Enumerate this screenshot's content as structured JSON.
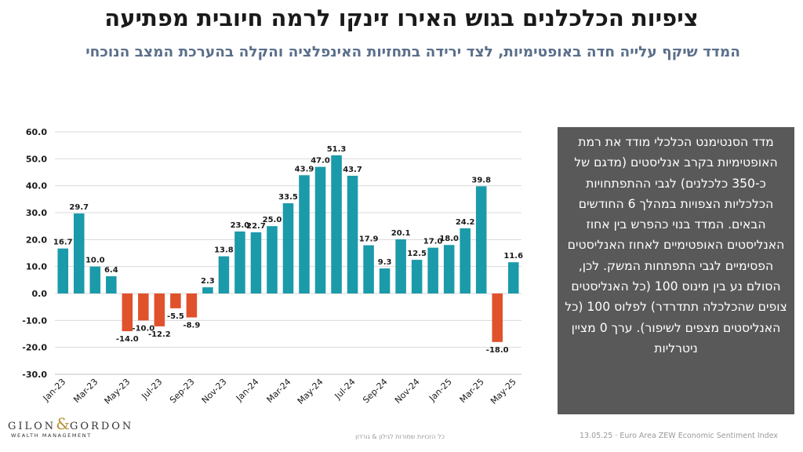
{
  "title": "ציפיות הכלכלנים בגוש האירו זינקו לרמה חיובית מפתיעה",
  "subtitle": "המדד שיקף עלייה חדה באופטימיות, לצד ירידה בתחזיות האינפלציה והקלה בהערכת המצב הנוכחי",
  "panel_text": "מדד הסנטימנט הכלכלי מודד את רמת האופטימיות בקרב אנליסטים (מדגם של כ-350 כלכלנים) לגבי ההתפתחויות הכלכליות הצפויות במהלך 6 החודשים הבאים. המדד בנוי כהפרש בין אחוז האנליסטים האופטימיים לאחוז האנליסטים הפסימיים לגבי התפתחות המשק. לכן, הסולם נע בין מינוס 100 (כל האנליסטים צופים שהכלכלה תתדרדר) לפלוס 100 (כל האנליסטים מצפים לשיפור). ערך 0 מציין ניטרליות",
  "logo": {
    "name_left": "GILON",
    "ampersand": "&",
    "name_right": "GORDON",
    "sub": "WEALTH MANAGEMENT"
  },
  "footer": {
    "rights": "כל הזכויות שמורות לגילון & גורדון",
    "source": "13.05.25 · Euro Area ZEW Economic Sentiment Index"
  },
  "colors": {
    "positive": "#1b9aaa",
    "negative": "#e0522c",
    "grid": "#d9d9d9",
    "text": "#1a1a1a"
  },
  "chart_data": {
    "type": "bar",
    "categories": [
      "Jan-23",
      "Feb-23",
      "Mar-23",
      "Apr-23",
      "May-23",
      "Jun-23",
      "Jul-23",
      "Aug-23",
      "Sep-23",
      "Oct-23",
      "Nov-23",
      "Dec-23",
      "Jan-24",
      "Feb-24",
      "Mar-24",
      "Apr-24",
      "May-24",
      "Jun-24",
      "Jul-24",
      "Aug-24",
      "Sep-24",
      "Oct-24",
      "Nov-24",
      "Dec-24",
      "Jan-25",
      "Feb-25",
      "Mar-25",
      "Apr-25",
      "May-25"
    ],
    "tick_labels": [
      "Jan-23",
      "Mar-23",
      "May-23",
      "Jul-23",
      "Sep-23",
      "Nov-23",
      "Jan-24",
      "Mar-24",
      "May-24",
      "Jul-24",
      "Sep-24",
      "Nov-24",
      "Jan-25",
      "Mar-25",
      "May-25"
    ],
    "values": [
      16.7,
      29.7,
      10.0,
      6.4,
      -14.0,
      -10.0,
      -12.2,
      -5.5,
      -8.9,
      2.3,
      13.8,
      23.0,
      22.7,
      25.0,
      33.5,
      43.9,
      47.0,
      51.3,
      43.7,
      17.9,
      9.3,
      20.1,
      12.5,
      17.0,
      18.0,
      24.2,
      39.8,
      -18.0,
      11.6
    ],
    "ylim": [
      -30,
      60
    ],
    "yticks": [
      "60.0",
      "50.0",
      "40.0",
      "30.0",
      "20.0",
      "10.0",
      "0.0",
      "-10.0",
      "-20.0",
      "-30.0"
    ],
    "grid": true
  }
}
